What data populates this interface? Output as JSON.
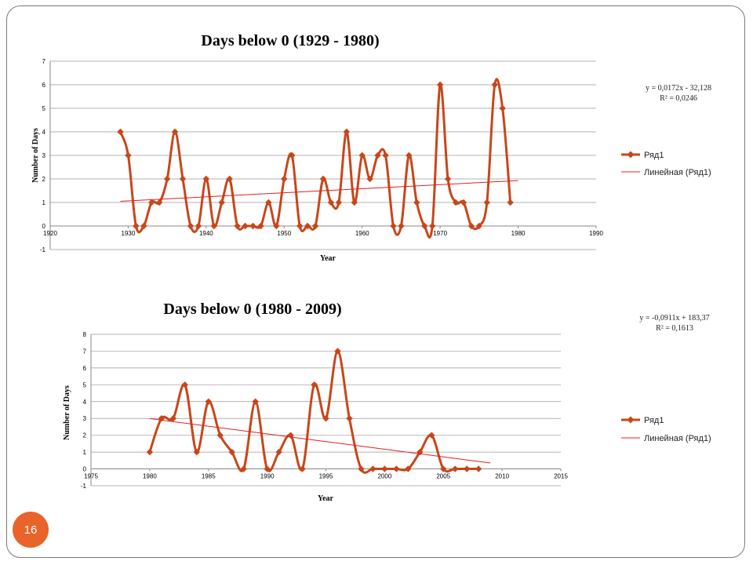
{
  "page": {
    "number": "16"
  },
  "chart_data": [
    {
      "type": "line",
      "title": "Days below 0 (1929 - 1980)",
      "xlabel": "Year",
      "ylabel": "Number of Days",
      "xlim": [
        1920,
        1990
      ],
      "ylim": [
        -1,
        7
      ],
      "x_ticks": [
        "1920",
        "1930",
        "1940",
        "1950",
        "1960",
        "1970",
        "1980",
        "1990"
      ],
      "y_ticks": [
        "-1",
        "0",
        "1",
        "2",
        "3",
        "4",
        "5",
        "6",
        "7"
      ],
      "grid": true,
      "legend_position": "right",
      "series": [
        {
          "name": "Ряд1",
          "color": "#c8461a",
          "x": [
            1929,
            1930,
            1931,
            1932,
            1933,
            1934,
            1935,
            1936,
            1937,
            1938,
            1939,
            1940,
            1941,
            1942,
            1943,
            1944,
            1945,
            1946,
            1947,
            1948,
            1949,
            1950,
            1951,
            1952,
            1953,
            1954,
            1955,
            1956,
            1957,
            1958,
            1959,
            1960,
            1961,
            1962,
            1963,
            1964,
            1965,
            1966,
            1967,
            1968,
            1969,
            1970,
            1971,
            1972,
            1973,
            1974,
            1975,
            1976,
            1977,
            1978,
            1979
          ],
          "y": [
            4,
            3,
            0,
            0,
            1,
            1,
            2,
            4,
            2,
            0,
            0,
            2,
            0,
            1,
            2,
            0,
            0,
            0,
            0,
            1,
            0,
            2,
            3,
            0,
            0,
            0,
            2,
            1,
            1,
            4,
            1,
            3,
            2,
            3,
            3,
            0,
            0,
            3,
            1,
            0,
            0,
            6,
            2,
            1,
            1,
            0,
            0,
            1,
            6,
            5,
            1
          ]
        }
      ],
      "trendline": {
        "name": "Линейная (Ряд1)",
        "color": "#e02020",
        "slope": 0.0172,
        "intercept": -32.128,
        "x_range": [
          1929,
          1980
        ],
        "equation": "y = 0,0172x - 32,128",
        "r_squared": "R² = 0,0246"
      }
    },
    {
      "type": "line",
      "title": "Days below 0 (1980 - 2009)",
      "xlabel": "Year",
      "ylabel": "Number of Days",
      "xlim": [
        1975,
        2015
      ],
      "ylim": [
        -1,
        8
      ],
      "x_ticks": [
        "1975",
        "1980",
        "1985",
        "1990",
        "1995",
        "2000",
        "2005",
        "2010",
        "2015"
      ],
      "y_ticks": [
        "-1",
        "0",
        "1",
        "2",
        "3",
        "4",
        "5",
        "6",
        "7",
        "8"
      ],
      "grid": true,
      "legend_position": "right",
      "series": [
        {
          "name": "Ряд1",
          "color": "#c8461a",
          "x": [
            1980,
            1981,
            1982,
            1983,
            1984,
            1985,
            1986,
            1987,
            1988,
            1989,
            1990,
            1991,
            1992,
            1993,
            1994,
            1995,
            1996,
            1997,
            1998,
            1999,
            2000,
            2001,
            2002,
            2003,
            2004,
            2005,
            2006,
            2007,
            2008
          ],
          "y": [
            1,
            3,
            3,
            5,
            1,
            4,
            2,
            1,
            0,
            4,
            0,
            1,
            2,
            0,
            5,
            3,
            7,
            3,
            0,
            0,
            0,
            0,
            0,
            1,
            2,
            0,
            0,
            0,
            0
          ]
        }
      ],
      "trendline": {
        "name": "Линейная (Ряд1)",
        "color": "#e02020",
        "slope": -0.0911,
        "intercept": 183.37,
        "x_range": [
          1980,
          2009
        ],
        "equation": "y = -0,0911x + 183,37",
        "r_squared": "R² = 0,1613"
      }
    }
  ]
}
